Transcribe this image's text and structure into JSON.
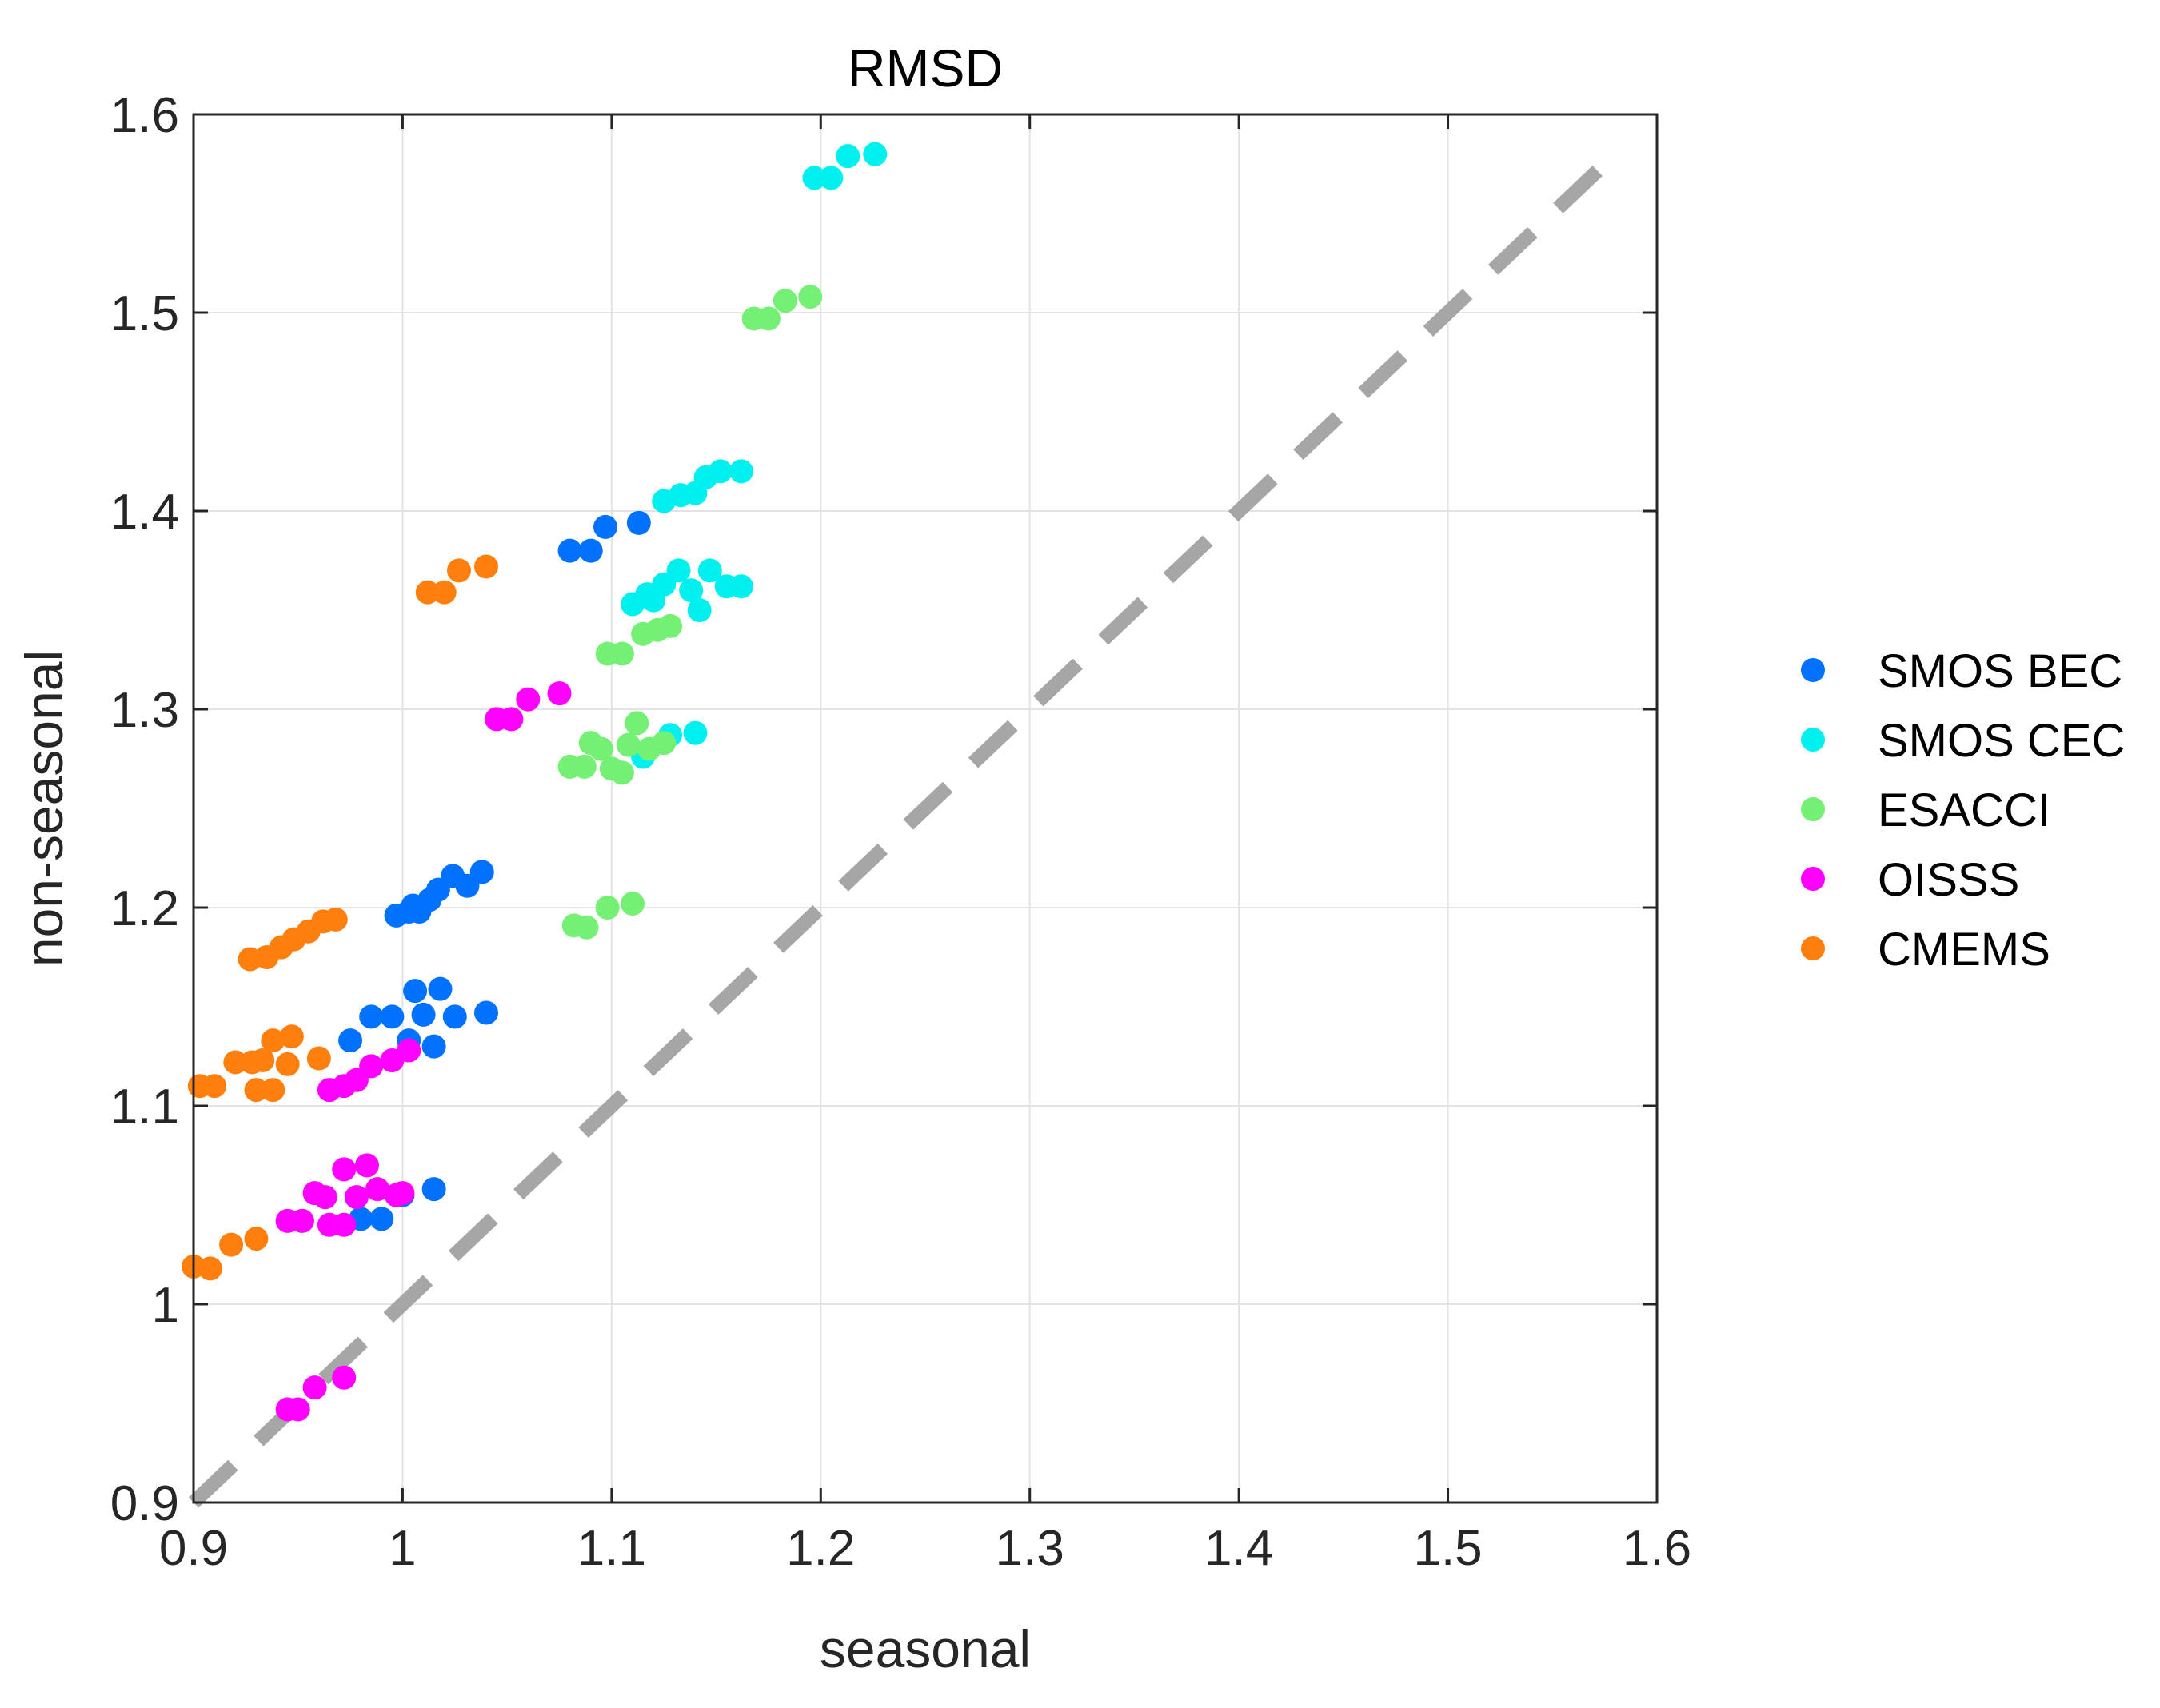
{
  "chart_data": {
    "type": "scatter",
    "title": "RMSD",
    "xlabel": "seasonal",
    "ylabel": "non-seasonal",
    "xlim": [
      0.9,
      1.6
    ],
    "ylim": [
      0.9,
      1.6
    ],
    "xticks": [
      0.9,
      1.0,
      1.1,
      1.2,
      1.3,
      1.4,
      1.5,
      1.6
    ],
    "yticks": [
      0.9,
      1.0,
      1.1,
      1.2,
      1.3,
      1.4,
      1.5,
      1.6
    ],
    "xtick_labels": [
      "0.9",
      "1",
      "1.1",
      "1.2",
      "1.3",
      "1.4",
      "1.5",
      "1.6"
    ],
    "ytick_labels": [
      "0.9",
      "1",
      "1.1",
      "1.2",
      "1.3",
      "1.4",
      "1.5",
      "1.6"
    ],
    "grid": true,
    "legend_position": "right",
    "reference_line": {
      "type": "identity",
      "style": "dashed",
      "color": "#a6a6a6",
      "x": [
        0.9,
        1.6
      ],
      "y": [
        0.9,
        1.6
      ]
    },
    "series": [
      {
        "name": "SMOS BEC",
        "color": "#0072ff",
        "points": [
          [
            1.08,
            1.38
          ],
          [
            1.09,
            1.38
          ],
          [
            1.097,
            1.392
          ],
          [
            1.113,
            1.394
          ],
          [
            0.997,
            1.196
          ],
          [
            1.003,
            1.198
          ],
          [
            1.008,
            1.198
          ],
          [
            1.013,
            1.204
          ],
          [
            1.017,
            1.209
          ],
          [
            1.024,
            1.216
          ],
          [
            1.031,
            1.211
          ],
          [
            1.038,
            1.218
          ],
          [
            1.005,
            1.201
          ],
          [
            0.975,
            1.133
          ],
          [
            0.985,
            1.145
          ],
          [
            0.995,
            1.145
          ],
          [
            1.003,
            1.133
          ],
          [
            1.006,
            1.158
          ],
          [
            1.01,
            1.146
          ],
          [
            1.015,
            1.13
          ],
          [
            1.018,
            1.159
          ],
          [
            1.025,
            1.145
          ],
          [
            1.04,
            1.147
          ],
          [
            0.98,
            1.043
          ],
          [
            0.99,
            1.043
          ],
          [
            1.0,
            1.055
          ],
          [
            1.015,
            1.058
          ]
        ]
      },
      {
        "name": "SMOS CEC",
        "color": "#00f0f0",
        "points": [
          [
            1.197,
            1.568
          ],
          [
            1.205,
            1.568
          ],
          [
            1.213,
            1.579
          ],
          [
            1.226,
            1.58
          ],
          [
            1.125,
            1.405
          ],
          [
            1.133,
            1.408
          ],
          [
            1.14,
            1.409
          ],
          [
            1.145,
            1.417
          ],
          [
            1.152,
            1.42
          ],
          [
            1.162,
            1.42
          ],
          [
            1.11,
            1.353
          ],
          [
            1.117,
            1.358
          ],
          [
            1.125,
            1.363
          ],
          [
            1.132,
            1.37
          ],
          [
            1.138,
            1.36
          ],
          [
            1.142,
            1.35
          ],
          [
            1.147,
            1.37
          ],
          [
            1.155,
            1.362
          ],
          [
            1.162,
            1.362
          ],
          [
            1.12,
            1.355
          ],
          [
            1.128,
            1.287
          ],
          [
            1.14,
            1.288
          ],
          [
            1.115,
            1.276
          ]
        ]
      },
      {
        "name": "ESACCI",
        "color": "#74f074",
        "points": [
          [
            1.168,
            1.497
          ],
          [
            1.175,
            1.497
          ],
          [
            1.183,
            1.506
          ],
          [
            1.195,
            1.508
          ],
          [
            1.098,
            1.328
          ],
          [
            1.105,
            1.328
          ],
          [
            1.115,
            1.338
          ],
          [
            1.122,
            1.34
          ],
          [
            1.128,
            1.342
          ],
          [
            1.08,
            1.271
          ],
          [
            1.087,
            1.271
          ],
          [
            1.09,
            1.283
          ],
          [
            1.095,
            1.28
          ],
          [
            1.1,
            1.27
          ],
          [
            1.105,
            1.268
          ],
          [
            1.108,
            1.282
          ],
          [
            1.112,
            1.293
          ],
          [
            1.118,
            1.28
          ],
          [
            1.125,
            1.283
          ],
          [
            1.082,
            1.191
          ],
          [
            1.088,
            1.19
          ],
          [
            1.098,
            1.2
          ],
          [
            1.11,
            1.202
          ]
        ]
      },
      {
        "name": "OISSS",
        "color": "#ff00ff",
        "points": [
          [
            1.045,
            1.295
          ],
          [
            1.052,
            1.295
          ],
          [
            1.06,
            1.305
          ],
          [
            1.075,
            1.308
          ],
          [
            0.965,
            1.108
          ],
          [
            0.972,
            1.11
          ],
          [
            0.978,
            1.113
          ],
          [
            0.985,
            1.12
          ],
          [
            0.995,
            1.123
          ],
          [
            1.003,
            1.128
          ],
          [
            0.945,
            1.042
          ],
          [
            0.952,
            1.042
          ],
          [
            0.958,
            1.056
          ],
          [
            0.963,
            1.054
          ],
          [
            0.965,
            1.04
          ],
          [
            0.972,
            1.04
          ],
          [
            0.972,
            1.068
          ],
          [
            0.978,
            1.054
          ],
          [
            0.983,
            1.07
          ],
          [
            0.988,
            1.058
          ],
          [
            0.997,
            1.055
          ],
          [
            1.0,
            1.056
          ],
          [
            0.945,
            0.947
          ],
          [
            0.95,
            0.947
          ],
          [
            0.958,
            0.958
          ],
          [
            0.972,
            0.963
          ]
        ]
      },
      {
        "name": "CMEMS",
        "color": "#ff7f0e",
        "points": [
          [
            1.012,
            1.359
          ],
          [
            1.02,
            1.359
          ],
          [
            1.027,
            1.37
          ],
          [
            1.04,
            1.372
          ],
          [
            0.927,
            1.174
          ],
          [
            0.935,
            1.175
          ],
          [
            0.942,
            1.18
          ],
          [
            0.948,
            1.184
          ],
          [
            0.955,
            1.188
          ],
          [
            0.962,
            1.193
          ],
          [
            0.968,
            1.194
          ],
          [
            0.92,
            1.122
          ],
          [
            0.928,
            1.122
          ],
          [
            0.933,
            1.123
          ],
          [
            0.938,
            1.133
          ],
          [
            0.947,
            1.135
          ],
          [
            0.945,
            1.121
          ],
          [
            0.96,
            1.124
          ],
          [
            0.903,
            1.11
          ],
          [
            0.91,
            1.11
          ],
          [
            0.93,
            1.108
          ],
          [
            0.938,
            1.108
          ],
          [
            0.9,
            1.019
          ],
          [
            0.908,
            1.018
          ],
          [
            0.918,
            1.03
          ],
          [
            0.93,
            1.033
          ]
        ]
      }
    ]
  }
}
